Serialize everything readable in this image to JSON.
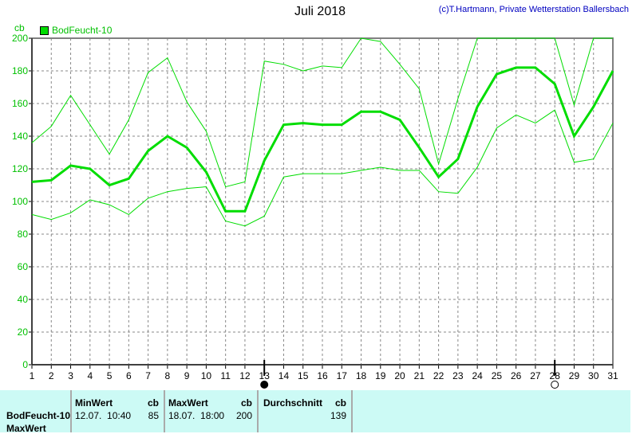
{
  "title": "Juli 2018",
  "credit": "(c)T.Hartmann, Private Wetterstation Ballersbach",
  "colors": {
    "series": "#00dd00",
    "grid": "#808080",
    "table_bg": "#ccfaf5"
  },
  "chart_data": {
    "type": "line",
    "title": "Juli 2018",
    "ylabel": "cb",
    "ylim": [
      0,
      200
    ],
    "yticks": [
      0,
      20,
      40,
      60,
      80,
      100,
      120,
      140,
      160,
      180,
      200
    ],
    "x": [
      1,
      2,
      3,
      4,
      5,
      6,
      7,
      8,
      9,
      10,
      11,
      12,
      13,
      14,
      15,
      16,
      17,
      18,
      19,
      20,
      21,
      22,
      23,
      24,
      25,
      26,
      27,
      28,
      29,
      30,
      31
    ],
    "legend": "BodFeucht-10",
    "legend_position": "top-left",
    "grid": true,
    "moon_phases": [
      {
        "day": 13,
        "phase": "new-moon"
      },
      {
        "day": 28,
        "phase": "full-moon"
      }
    ],
    "series": [
      {
        "name": "max",
        "values": [
          136,
          146,
          165,
          147,
          129,
          150,
          179,
          188,
          161,
          143,
          109,
          112,
          186,
          184,
          180,
          183,
          182,
          200,
          198,
          184,
          169,
          123,
          163,
          200,
          200,
          200,
          200,
          200,
          159,
          200,
          200
        ]
      },
      {
        "name": "average",
        "values": [
          112,
          113,
          122,
          120,
          110,
          114,
          131,
          140,
          133,
          118,
          94,
          94,
          125,
          147,
          148,
          147,
          147,
          155,
          155,
          150,
          133,
          115,
          126,
          158,
          178,
          182,
          182,
          172,
          140,
          158,
          180
        ]
      },
      {
        "name": "min",
        "values": [
          92,
          89,
          93,
          101,
          98,
          92,
          102,
          106,
          108,
          109,
          88,
          85,
          91,
          115,
          117,
          117,
          117,
          119,
          121,
          119,
          119,
          106,
          105,
          121,
          145,
          153,
          148,
          156,
          124,
          126,
          148
        ]
      }
    ]
  },
  "table": {
    "row_label": "BodFeucht-10",
    "row_label2": "MaxWert",
    "min_header": "MinWert",
    "min_unit": "cb",
    "min_time": "12.07.  10:40",
    "min_value": "85",
    "max_header": "MaxWert",
    "max_unit": "cb",
    "max_time": "18.07.  18:00",
    "max_value": "200",
    "avg_header": "Durchschnitt",
    "avg_unit": "cb",
    "avg_value": "139"
  }
}
